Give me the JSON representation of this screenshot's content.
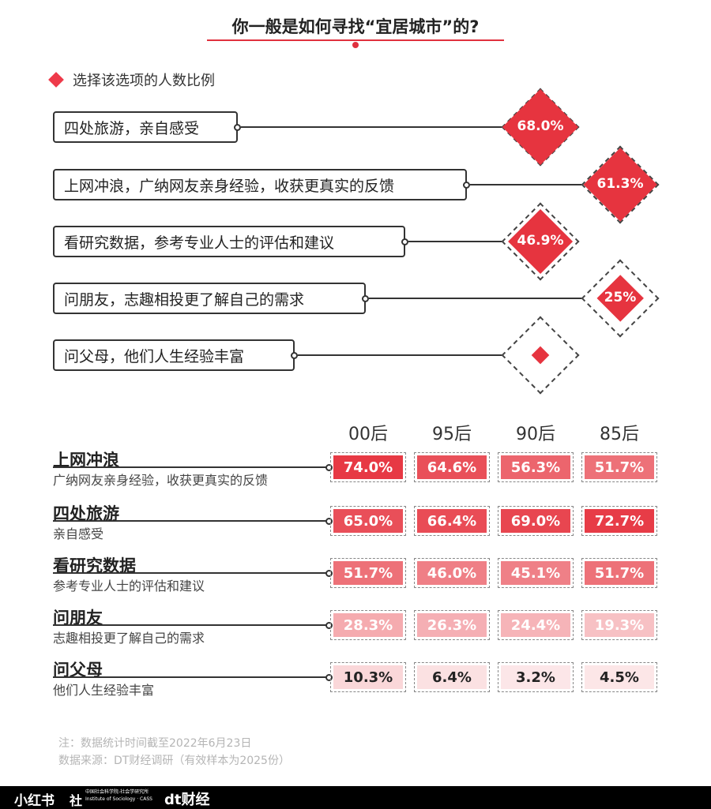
{
  "title": "你一般是如何寻找“宜居城市”的?",
  "legend_label": "选择该选项的人数比例",
  "colors": {
    "accent": "#e6343f",
    "dark": "#333333",
    "note": "#b5b5b5"
  },
  "chart_data": [
    {
      "type": "bar",
      "categories": [
        "四处旅游，亲自感受",
        "上网冲浪，广纳网友亲身经验，收获更真实的反馈",
        "看研究数据，参考专业人士的评估和建议",
        "问朋友，志趣相投更了解自己的需求",
        "问父母，他们人生经验丰富"
      ],
      "values": [
        68.0,
        61.3,
        46.9,
        25,
        null
      ],
      "value_labels": [
        "68.0%",
        "61.3%",
        "46.9%",
        "25%",
        ""
      ],
      "unit": "%",
      "series": [
        {
          "name": "选择该选项的人数比例",
          "values": [
            68.0,
            61.3,
            46.9,
            25,
            null
          ]
        }
      ],
      "ylim": [
        0,
        100
      ]
    },
    {
      "type": "heatmap",
      "x": [
        "00后",
        "95后",
        "90后",
        "85后"
      ],
      "rows": [
        {
          "title": "上网冲浪",
          "subtitle": "广纳网友亲身经验，收获更真实的反馈",
          "values": [
            74.0,
            64.6,
            56.3,
            51.7
          ],
          "labels": [
            "74.0%",
            "64.6%",
            "56.3%",
            "51.7%"
          ]
        },
        {
          "title": "四处旅游",
          "subtitle": "亲自感受",
          "values": [
            65.0,
            66.4,
            69.0,
            72.7
          ],
          "labels": [
            "65.0%",
            "66.4%",
            "69.0%",
            "72.7%"
          ]
        },
        {
          "title": "看研究数据",
          "subtitle": "参考专业人士的评估和建议",
          "values": [
            51.7,
            46.0,
            45.1,
            51.7
          ],
          "labels": [
            "51.7%",
            "46.0%",
            "45.1%",
            "51.7%"
          ]
        },
        {
          "title": "问朋友",
          "subtitle": "志趣相投更了解自己的需求",
          "values": [
            28.3,
            26.3,
            24.4,
            19.3
          ],
          "labels": [
            "28.3%",
            "26.3%",
            "24.4%",
            "19.3%"
          ]
        },
        {
          "title": "问父母",
          "subtitle": "他们人生经验丰富",
          "values": [
            10.3,
            6.4,
            3.2,
            4.5
          ],
          "labels": [
            "10.3%",
            "6.4%",
            "3.2%",
            "4.5%"
          ]
        }
      ],
      "unit": "%"
    }
  ],
  "notes": [
    "注：数据统计时间截至2022年6月23日",
    "数据来源：DT财经调研（有效样本为2025份）"
  ],
  "footer": {
    "xiaohongshu": "小红书",
    "cass_mark": "社",
    "cass_cn": "中国社会科学院-社会学研究所",
    "cass_en": "Institute of Sociology · CASS",
    "dt_logo": "dt",
    "dt_name": "财经"
  }
}
